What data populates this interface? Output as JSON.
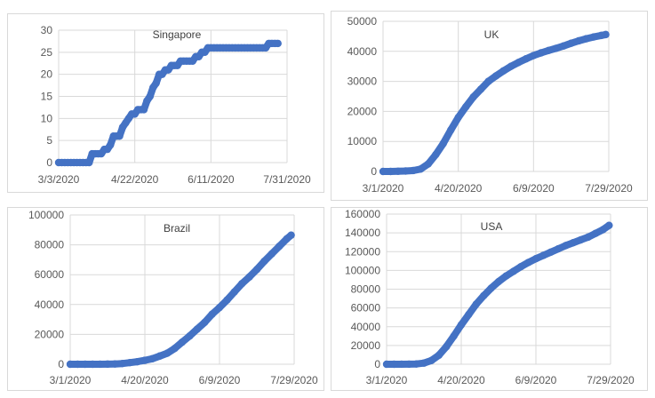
{
  "chart_data": [
    {
      "type": "scatter",
      "title": "Singapore",
      "x_ticks": [
        "3/3/2020",
        "4/22/2020",
        "6/11/2020",
        "7/31/2020"
      ],
      "xlim": [
        "2020-03-03",
        "2020-07-31"
      ],
      "ylim": [
        0,
        30
      ],
      "y_ticks": [
        0,
        5,
        10,
        15,
        20,
        25,
        30
      ],
      "grid": true,
      "color": "#4472c4",
      "series": [
        {
          "x": [
            "2020-03-03",
            "2020-03-05",
            "2020-03-07",
            "2020-03-09",
            "2020-03-11",
            "2020-03-13",
            "2020-03-15",
            "2020-03-17",
            "2020-03-19",
            "2020-03-21",
            "2020-03-23",
            "2020-03-25",
            "2020-03-27",
            "2020-03-29",
            "2020-03-31",
            "2020-04-02",
            "2020-04-04",
            "2020-04-06",
            "2020-04-08",
            "2020-04-10",
            "2020-04-12",
            "2020-04-14",
            "2020-04-16",
            "2020-04-18",
            "2020-04-20",
            "2020-04-22",
            "2020-04-24",
            "2020-04-26",
            "2020-04-28",
            "2020-04-30",
            "2020-05-02",
            "2020-05-04",
            "2020-05-06",
            "2020-05-08",
            "2020-05-10",
            "2020-05-12",
            "2020-05-14",
            "2020-05-16",
            "2020-05-18",
            "2020-05-20",
            "2020-05-22",
            "2020-05-24",
            "2020-05-26",
            "2020-05-28",
            "2020-05-30",
            "2020-06-01",
            "2020-06-03",
            "2020-06-05",
            "2020-06-07",
            "2020-06-09",
            "2020-06-11",
            "2020-06-13",
            "2020-06-15",
            "2020-06-17",
            "2020-06-19",
            "2020-06-21",
            "2020-06-23",
            "2020-06-25",
            "2020-06-27",
            "2020-06-29",
            "2020-07-01",
            "2020-07-03",
            "2020-07-05",
            "2020-07-07",
            "2020-07-09",
            "2020-07-11",
            "2020-07-13",
            "2020-07-15",
            "2020-07-17",
            "2020-07-19",
            "2020-07-21",
            "2020-07-23",
            "2020-07-25"
          ],
          "y": [
            0,
            0,
            0,
            0,
            0,
            0,
            0,
            0,
            0,
            0,
            0,
            2,
            2,
            2,
            2,
            3,
            3,
            4,
            6,
            6,
            6,
            8,
            9,
            10,
            11,
            11,
            12,
            12,
            12,
            14,
            15,
            17,
            18,
            20,
            20,
            21,
            21,
            22,
            22,
            22,
            23,
            23,
            23,
            23,
            23,
            24,
            24,
            25,
            25,
            26,
            26,
            26,
            26,
            26,
            26,
            26,
            26,
            26,
            26,
            26,
            26,
            26,
            26,
            26,
            26,
            26,
            26,
            26,
            26,
            27,
            27,
            27,
            27
          ]
        }
      ]
    },
    {
      "type": "scatter",
      "title": "UK",
      "x_ticks": [
        "3/1/2020",
        "4/20/2020",
        "6/9/2020",
        "7/29/2020"
      ],
      "xlim": [
        "2020-03-01",
        "2020-07-29"
      ],
      "ylim": [
        0,
        50000
      ],
      "y_ticks": [
        0,
        10000,
        20000,
        30000,
        40000,
        50000
      ],
      "grid": true,
      "color": "#4472c4",
      "series": [
        {
          "x": [
            "2020-03-01",
            "2020-03-06",
            "2020-03-11",
            "2020-03-16",
            "2020-03-21",
            "2020-03-26",
            "2020-03-31",
            "2020-04-05",
            "2020-04-10",
            "2020-04-15",
            "2020-04-20",
            "2020-04-25",
            "2020-04-30",
            "2020-05-05",
            "2020-05-10",
            "2020-05-15",
            "2020-05-20",
            "2020-05-25",
            "2020-05-30",
            "2020-06-04",
            "2020-06-09",
            "2020-06-14",
            "2020-06-19",
            "2020-06-24",
            "2020-06-29",
            "2020-07-04",
            "2020-07-09",
            "2020-07-14",
            "2020-07-19",
            "2020-07-24",
            "2020-07-27"
          ],
          "y": [
            0,
            0,
            50,
            150,
            300,
            800,
            2500,
            5600,
            9300,
            13800,
            18000,
            21500,
            24800,
            27400,
            30000,
            31800,
            33500,
            35000,
            36300,
            37500,
            38600,
            39500,
            40300,
            41000,
            41800,
            42700,
            43500,
            44200,
            44800,
            45300,
            45600
          ]
        }
      ]
    },
    {
      "type": "scatter",
      "title": "Brazil",
      "x_ticks": [
        "3/1/2020",
        "4/20/2020",
        "6/9/2020",
        "7/29/2020"
      ],
      "xlim": [
        "2020-03-01",
        "2020-07-29"
      ],
      "ylim": [
        0,
        100000
      ],
      "y_ticks": [
        0,
        20000,
        40000,
        60000,
        80000,
        100000
      ],
      "grid": true,
      "color": "#4472c4",
      "series": [
        {
          "x": [
            "2020-03-01",
            "2020-03-06",
            "2020-03-11",
            "2020-03-16",
            "2020-03-21",
            "2020-03-26",
            "2020-03-31",
            "2020-04-05",
            "2020-04-10",
            "2020-04-15",
            "2020-04-20",
            "2020-04-25",
            "2020-04-30",
            "2020-05-05",
            "2020-05-10",
            "2020-05-15",
            "2020-05-20",
            "2020-05-25",
            "2020-05-30",
            "2020-06-04",
            "2020-06-09",
            "2020-06-14",
            "2020-06-19",
            "2020-06-24",
            "2020-06-29",
            "2020-07-04",
            "2020-07-09",
            "2020-07-14",
            "2020-07-19",
            "2020-07-24",
            "2020-07-27"
          ],
          "y": [
            0,
            0,
            0,
            0,
            10,
            80,
            200,
            500,
            1100,
            1700,
            2600,
            3700,
            5500,
            7400,
            10600,
            14800,
            18900,
            23500,
            28000,
            33500,
            38000,
            43000,
            48500,
            54000,
            58500,
            63500,
            69000,
            74000,
            79000,
            84000,
            86500
          ]
        }
      ]
    },
    {
      "type": "scatter",
      "title": "USA",
      "x_ticks": [
        "3/1/2020",
        "4/20/2020",
        "6/9/2020",
        "7/29/2020"
      ],
      "xlim": [
        "2020-03-01",
        "2020-07-29"
      ],
      "ylim": [
        0,
        160000
      ],
      "y_ticks": [
        0,
        20000,
        40000,
        60000,
        80000,
        100000,
        120000,
        140000,
        160000
      ],
      "grid": true,
      "color": "#4472c4",
      "series": [
        {
          "x": [
            "2020-03-01",
            "2020-03-06",
            "2020-03-11",
            "2020-03-16",
            "2020-03-21",
            "2020-03-26",
            "2020-03-31",
            "2020-04-05",
            "2020-04-10",
            "2020-04-15",
            "2020-04-20",
            "2020-04-25",
            "2020-04-30",
            "2020-05-05",
            "2020-05-10",
            "2020-05-15",
            "2020-05-20",
            "2020-05-25",
            "2020-05-30",
            "2020-06-04",
            "2020-06-09",
            "2020-06-14",
            "2020-06-19",
            "2020-06-24",
            "2020-06-29",
            "2020-07-04",
            "2020-07-09",
            "2020-07-14",
            "2020-07-19",
            "2020-07-24",
            "2020-07-28"
          ],
          "y": [
            0,
            10,
            40,
            100,
            300,
            1200,
            4000,
            9600,
            18700,
            30000,
            42000,
            53000,
            64000,
            73000,
            81000,
            88000,
            94000,
            99000,
            104000,
            108500,
            112500,
            116000,
            119500,
            123000,
            126500,
            129500,
            132500,
            135500,
            139500,
            143500,
            148000
          ]
        }
      ]
    }
  ]
}
